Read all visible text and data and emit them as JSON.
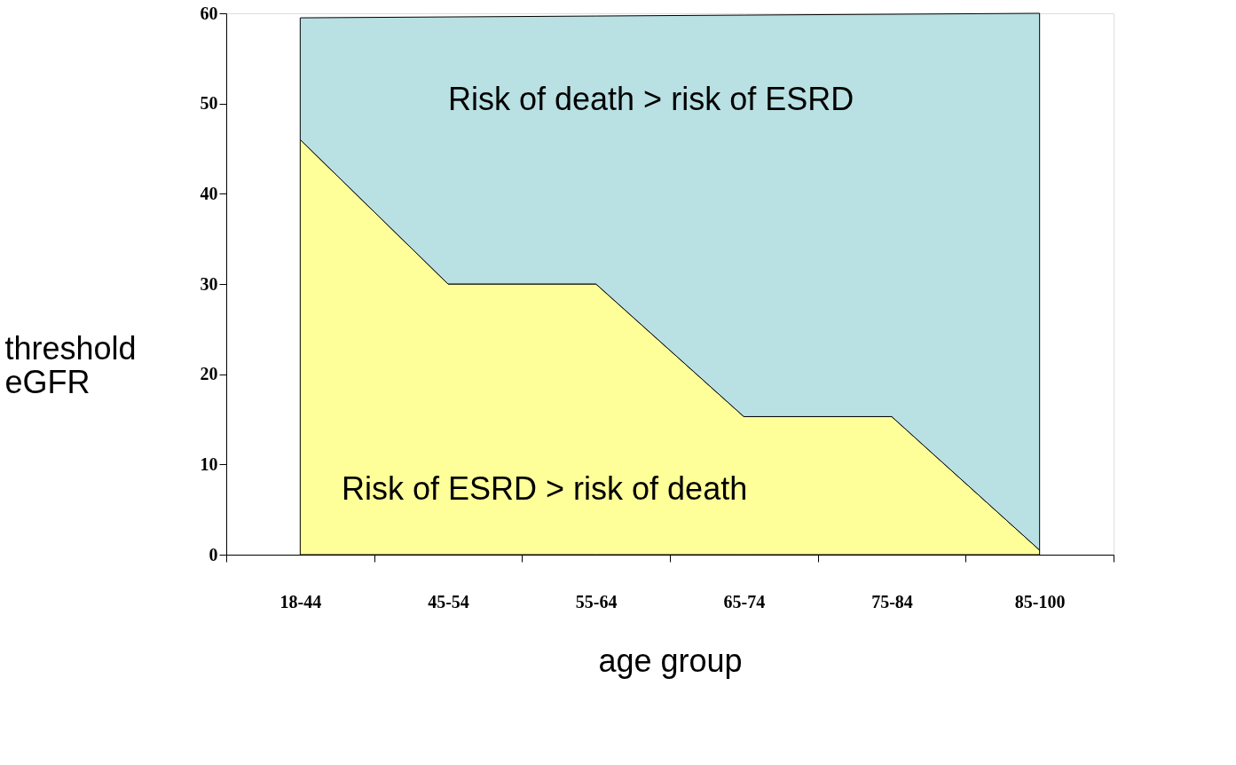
{
  "chart_data": {
    "type": "area",
    "xlabel": "age group",
    "ylabel": "threshold\neGFR",
    "categories": [
      "18-44",
      "45-54",
      "55-64",
      "65-74",
      "75-84",
      "85-100"
    ],
    "stacked": true,
    "ylim": [
      0,
      60
    ],
    "yticks": [
      0,
      10,
      20,
      30,
      40,
      50,
      60
    ],
    "grid": false,
    "legend": false,
    "series": [
      {
        "name": "Risk of ESRD > risk of death",
        "color": "#ffff99",
        "values": [
          46,
          30,
          30,
          15.3,
          15.3,
          0.5
        ]
      },
      {
        "name": "Risk of death > risk of ESRD",
        "color": "#b9e0e3",
        "values": [
          13.5,
          29.6,
          29.7,
          44.5,
          44.6,
          59.5
        ]
      }
    ]
  }
}
